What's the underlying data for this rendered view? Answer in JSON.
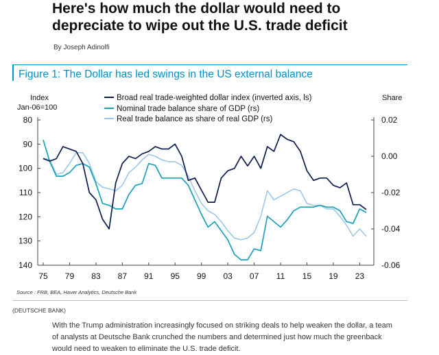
{
  "article": {
    "headline": "Here's how much the dollar would need to depreciate to wipe out the U.S. trade deficit",
    "byline": "By Joseph Adinolfi",
    "source_label": "(DEUTSCHE BANK)",
    "body": "With the Trump administration increasingly focused on striking deals to help weaken the dollar, a team of analysts at Deutsche Bank crunched the numbers and determined just how much the greenback would need to weaken to eliminate the U.S. trade deficit."
  },
  "figure": {
    "title": "Figure 1: The Dollar has led swings in the US external balance",
    "source": "Source : FRB, BEA, Haver Analytics, Deutsche Bank"
  },
  "colors": {
    "dollar": "#0b1b4d",
    "nominal": "#1aa0b8",
    "real": "#9cc8e6",
    "fig_title": "#0090c5"
  },
  "chart_data": {
    "type": "line",
    "left_axis": {
      "label_line1": "Index",
      "label_line2": "Jan-06=100",
      "range": [
        80,
        140
      ],
      "inverted": true,
      "ticks": [
        80,
        90,
        100,
        110,
        120,
        130,
        140
      ]
    },
    "right_axis": {
      "label": "Share",
      "range": [
        -0.06,
        0.02
      ],
      "ticks": [
        0.02,
        0.0,
        -0.02,
        -0.04,
        -0.06
      ],
      "tick_labels": [
        "0.02",
        "0.00",
        "-0.02",
        "-0.04",
        "-0.06"
      ]
    },
    "x_axis": {
      "range": [
        1975,
        2025
      ],
      "ticks": [
        1975,
        1979,
        1983,
        1987,
        1991,
        1995,
        1999,
        2003,
        2007,
        2011,
        2015,
        2019,
        2023
      ],
      "tick_labels": [
        "75",
        "79",
        "83",
        "87",
        "91",
        "95",
        "99",
        "03",
        "07",
        "11",
        "15",
        "19",
        "23"
      ]
    },
    "grid": false,
    "legend_position": "top",
    "series": [
      {
        "name": "Broad real trade-weighted dollar index (inverted axis, ls)",
        "axis": "left",
        "x": [
          1975,
          1976,
          1977,
          1978,
          1979,
          1980,
          1981,
          1982,
          1983,
          1984,
          1985,
          1986,
          1987,
          1988,
          1989,
          1990,
          1991,
          1992,
          1993,
          1994,
          1995,
          1996,
          1997,
          1998,
          1999,
          2000,
          2001,
          2002,
          2003,
          2004,
          2005,
          2006,
          2007,
          2008,
          2009,
          2010,
          2011,
          2012,
          2013,
          2014,
          2015,
          2016,
          2017,
          2018,
          2019,
          2020,
          2021,
          2022,
          2023,
          2024
        ],
        "y": [
          96,
          97,
          96,
          91,
          92,
          93,
          98,
          110,
          113,
          121,
          125,
          106,
          98,
          95,
          96,
          94,
          93,
          91,
          92,
          92,
          90,
          95,
          105,
          104,
          109,
          114,
          114,
          104,
          101,
          100,
          95,
          99,
          95,
          100,
          91,
          93,
          86,
          88,
          89,
          93,
          101,
          105,
          104,
          104,
          107,
          108,
          106,
          115,
          115,
          117
        ]
      },
      {
        "name": "Nominal trade balance share of GDP (rs)",
        "axis": "right",
        "x": [
          1975,
          1976,
          1977,
          1978,
          1979,
          1980,
          1981,
          1982,
          1983,
          1984,
          1985,
          1986,
          1987,
          1988,
          1989,
          1990,
          1991,
          1992,
          1993,
          1994,
          1995,
          1996,
          1997,
          1998,
          1999,
          2000,
          2001,
          2002,
          2003,
          2004,
          2005,
          2006,
          2007,
          2008,
          2009,
          2010,
          2011,
          2012,
          2013,
          2014,
          2015,
          2016,
          2017,
          2018,
          2019,
          2020,
          2021,
          2022,
          2023,
          2024
        ],
        "y": [
          0.009,
          -0.003,
          -0.011,
          -0.011,
          -0.009,
          -0.005,
          -0.004,
          -0.006,
          -0.015,
          -0.026,
          -0.027,
          -0.029,
          -0.029,
          -0.021,
          -0.016,
          -0.015,
          -0.004,
          -0.005,
          -0.012,
          -0.012,
          -0.012,
          -0.012,
          -0.016,
          -0.024,
          -0.032,
          -0.039,
          -0.036,
          -0.041,
          -0.046,
          -0.054,
          -0.057,
          -0.057,
          -0.051,
          -0.052,
          -0.033,
          -0.036,
          -0.039,
          -0.035,
          -0.03,
          -0.028,
          -0.028,
          -0.028,
          -0.027,
          -0.028,
          -0.028,
          -0.03,
          -0.036,
          -0.037,
          -0.029,
          -0.031
        ]
      },
      {
        "name": "Real trade balance as share of real GDP (rs)",
        "axis": "right",
        "x": [
          1975,
          1976,
          1977,
          1978,
          1979,
          1980,
          1981,
          1982,
          1983,
          1984,
          1985,
          1986,
          1987,
          1988,
          1989,
          1990,
          1991,
          1992,
          1993,
          1994,
          1995,
          1996,
          1997,
          1998,
          1999,
          2000,
          2001,
          2002,
          2003,
          2004,
          2005,
          2006,
          2007,
          2008,
          2009,
          2010,
          2011,
          2012,
          2013,
          2014,
          2015,
          2016,
          2017,
          2018,
          2019,
          2020,
          2021,
          2022,
          2023,
          2024
        ],
        "y": [
          -0.001,
          -0.002,
          -0.01,
          -0.009,
          -0.004,
          0.002,
          0.002,
          -0.004,
          -0.014,
          -0.017,
          -0.018,
          -0.019,
          -0.016,
          -0.009,
          -0.006,
          -0.002,
          0.001,
          0.0,
          -0.002,
          -0.003,
          -0.003,
          -0.005,
          -0.011,
          -0.019,
          -0.026,
          -0.03,
          -0.032,
          -0.036,
          -0.041,
          -0.045,
          -0.046,
          -0.045,
          -0.042,
          -0.033,
          -0.019,
          -0.024,
          -0.022,
          -0.02,
          -0.018,
          -0.019,
          -0.026,
          -0.027,
          -0.027,
          -0.029,
          -0.029,
          -0.033,
          -0.038,
          -0.044,
          -0.04,
          -0.044
        ]
      }
    ]
  }
}
